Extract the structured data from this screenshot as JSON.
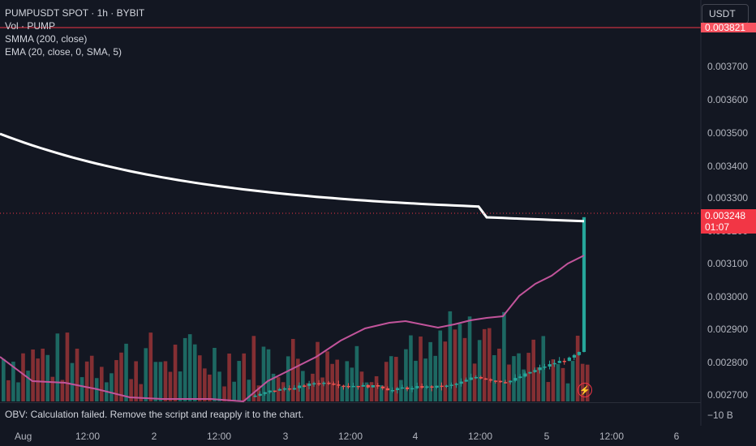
{
  "legend": {
    "symbol": "PUMPUSDT SPOT · 1h · BYBIT",
    "volume": "Vol · PUMP",
    "smma": "SMMA (200, close)",
    "ema": "EMA (20, close, 0, SMA, 5)"
  },
  "currency_button": "USDT",
  "price_axis": [
    "0.003700",
    "0.003600",
    "0.003500",
    "0.003400",
    "0.003300",
    "0.003200",
    "0.003100",
    "0.003000",
    "0.002900",
    "0.002800",
    "0.002700"
  ],
  "top_tag": "0.003821",
  "last_price": {
    "value": "0.003248",
    "countdown": "01:07"
  },
  "time_axis": [
    "Aug",
    "12:00",
    "2",
    "12:00",
    "3",
    "12:00",
    "4",
    "12:00",
    "5",
    "12:00",
    "6"
  ],
  "obv": {
    "message": "OBV: Calculation failed. Remove the script and reapply it to the chart.",
    "axis_label": "−10 B"
  },
  "alert_icon": "lightning-icon",
  "colors": {
    "up": "#26a69a",
    "down": "#ef5350",
    "background": "#131722",
    "smma": "#ffffff",
    "ema": "#c2549b",
    "accent": "#f23645"
  }
}
